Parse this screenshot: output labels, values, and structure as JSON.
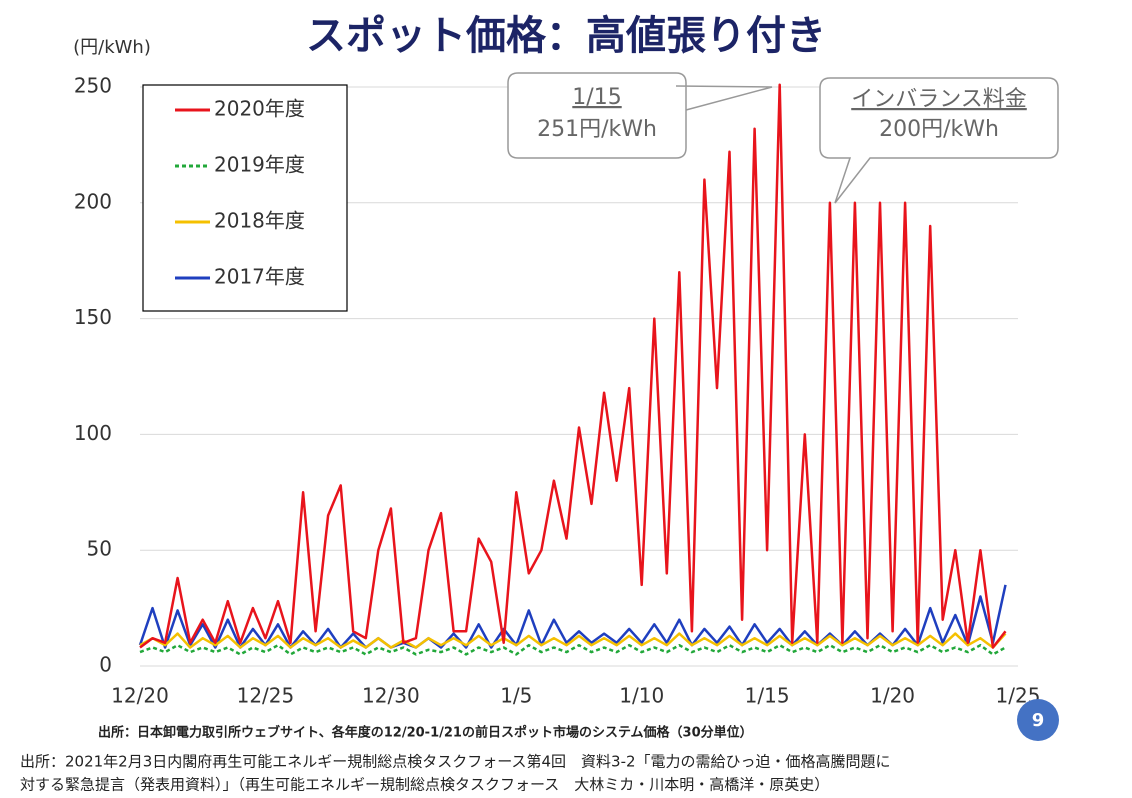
{
  "chart_data": {
    "type": "line",
    "title": "スポット価格：高値張り付き",
    "y_label": "(円/kWh)",
    "x": [
      0,
      0.5,
      1,
      1.5,
      2,
      2.5,
      3,
      3.5,
      4,
      4.5,
      5,
      5.5,
      6,
      6.5,
      7,
      7.5,
      8,
      8.5,
      9,
      9.5,
      10,
      10.5,
      11,
      11.5,
      12,
      12.5,
      13,
      13.5,
      14,
      14.5,
      15,
      15.5,
      16,
      16.5,
      17,
      17.5,
      18,
      18.5,
      19,
      19.5,
      20,
      20.5,
      21,
      21.5,
      22,
      22.5,
      23,
      23.5,
      24,
      24.5,
      25,
      25.5,
      26,
      26.5,
      27,
      27.5,
      28,
      28.5,
      29,
      29.5,
      30,
      30.5,
      31,
      31.5,
      32,
      32.5,
      33,
      33.5,
      34,
      34.5
    ],
    "xlim": [
      0,
      35
    ],
    "xticks": [
      {
        "value": 0,
        "label": "12/20"
      },
      {
        "value": 5,
        "label": "12/25"
      },
      {
        "value": 10,
        "label": "12/30"
      },
      {
        "value": 15,
        "label": "1/5"
      },
      {
        "value": 20,
        "label": "1/10"
      },
      {
        "value": 25,
        "label": "1/15"
      },
      {
        "value": 30,
        "label": "1/20"
      },
      {
        "value": 35,
        "label": "1/25"
      }
    ],
    "ylim": [
      0,
      250
    ],
    "yticks": [
      0,
      50,
      100,
      150,
      200,
      250
    ],
    "grid": true,
    "series": [
      {
        "name": "2020年度",
        "color": "#e8141c",
        "dashed": false,
        "values": [
          8,
          12,
          10,
          38,
          10,
          20,
          10,
          28,
          10,
          25,
          12,
          28,
          10,
          75,
          15,
          65,
          78,
          15,
          12,
          50,
          68,
          10,
          12,
          50,
          66,
          15,
          15,
          55,
          45,
          10,
          75,
          40,
          50,
          80,
          55,
          103,
          70,
          118,
          80,
          120,
          35,
          150,
          40,
          170,
          15,
          210,
          120,
          222,
          20,
          232,
          50,
          251,
          10,
          100,
          10,
          200,
          10,
          200,
          12,
          200,
          15,
          200,
          10,
          190,
          20,
          50,
          10,
          50,
          8,
          15
        ]
      },
      {
        "name": "2019年度",
        "color": "#22a83a",
        "dashed": true,
        "values": [
          6,
          8,
          6,
          9,
          6,
          8,
          6,
          8,
          5,
          8,
          6,
          9,
          5,
          8,
          6,
          8,
          6,
          8,
          5,
          8,
          6,
          8,
          5,
          7,
          6,
          8,
          5,
          8,
          6,
          8,
          5,
          9,
          6,
          8,
          6,
          9,
          6,
          8,
          6,
          9,
          6,
          8,
          6,
          9,
          6,
          8,
          6,
          9,
          6,
          8,
          6,
          9,
          6,
          8,
          6,
          9,
          6,
          8,
          6,
          9,
          6,
          8,
          6,
          9,
          6,
          8,
          6,
          9,
          5,
          8
        ]
      },
      {
        "name": "2018年度",
        "color": "#f5c000",
        "dashed": false,
        "values": [
          9,
          12,
          9,
          14,
          8,
          12,
          9,
          13,
          8,
          12,
          9,
          13,
          8,
          12,
          9,
          12,
          8,
          11,
          8,
          12,
          8,
          11,
          8,
          12,
          9,
          12,
          9,
          13,
          9,
          12,
          9,
          13,
          9,
          12,
          9,
          13,
          9,
          12,
          9,
          13,
          9,
          12,
          9,
          14,
          9,
          12,
          9,
          13,
          9,
          12,
          9,
          13,
          9,
          12,
          9,
          13,
          9,
          12,
          9,
          13,
          9,
          12,
          9,
          13,
          9,
          14,
          9,
          12,
          8,
          14
        ]
      },
      {
        "name": "2017年度",
        "color": "#1f3fbf",
        "dashed": false,
        "values": [
          9,
          25,
          8,
          24,
          9,
          18,
          8,
          20,
          8,
          16,
          9,
          18,
          8,
          15,
          9,
          16,
          8,
          14,
          8,
          12,
          8,
          10,
          8,
          12,
          8,
          14,
          8,
          18,
          8,
          16,
          9,
          24,
          9,
          20,
          10,
          15,
          10,
          14,
          10,
          16,
          10,
          18,
          10,
          20,
          9,
          16,
          10,
          17,
          9,
          18,
          10,
          16,
          9,
          15,
          9,
          14,
          9,
          15,
          9,
          14,
          9,
          16,
          9,
          25,
          10,
          22,
          9,
          30,
          10,
          35
        ]
      }
    ],
    "legend": "upper left",
    "annotations": [
      "1/15",
      "251円/kWh",
      "インバランス料金",
      "200円/kWh"
    ],
    "source": "出所：日本卸電力取引所ウェブサイト、各年度の12/20-1/21の前日スポット市場のシステム価格（30分単位）"
  },
  "page_number": "9",
  "footer": [
    "出所：2021年2月3日内閣府再生可能エネルギー規制総点検タスクフォース第4回　資料3-2「電力の需給ひっ迫・価格高騰問題に",
    "対する緊急提言（発表用資料）」（再生可能エネルギー規制総点検タスクフォース　大林ミカ・川本明・高橋洋・原英史）"
  ]
}
